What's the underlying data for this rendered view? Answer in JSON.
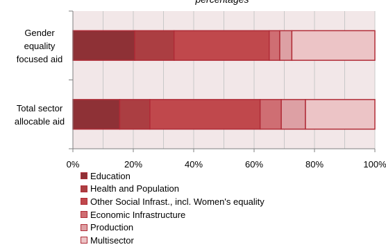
{
  "chart_data": {
    "type": "bar",
    "orientation": "horizontal",
    "stacked": true,
    "title": "percentages",
    "categories": [
      "Gender equality focused aid",
      "Total sector allocable aid"
    ],
    "category_lines": [
      [
        "Gender",
        "equality",
        "focused aid"
      ],
      [
        "Total sector",
        "allocable aid"
      ]
    ],
    "series": [
      {
        "name": "Education",
        "values": [
          20.5,
          15.5
        ],
        "color": "#8e3136"
      },
      {
        "name": "Health and Population",
        "values": [
          13.0,
          10.0
        ],
        "color": "#ab3e42"
      },
      {
        "name": "Other Social Infrast., incl. Women's equality",
        "values": [
          31.5,
          36.5
        ],
        "color": "#c0484c"
      },
      {
        "name": "Economic Infrastructure",
        "values": [
          3.5,
          7.0
        ],
        "color": "#cf6e73"
      },
      {
        "name": "Production",
        "values": [
          4.0,
          8.0
        ],
        "color": "#dda0a4"
      },
      {
        "name": "Multisector",
        "values": [
          27.5,
          23.0
        ],
        "color": "#ecc4c6"
      }
    ],
    "bar_border_color": "#b02c37",
    "plot_background": "#f2e7e8",
    "gridlines_color": "#c8c8c8",
    "xlim": [
      0,
      100
    ],
    "x_ticks": [
      "0%",
      "20%",
      "40%",
      "60%",
      "80%",
      "100%"
    ],
    "xlabel": "",
    "ylabel": "",
    "grid": true,
    "legend_position": "bottom"
  }
}
